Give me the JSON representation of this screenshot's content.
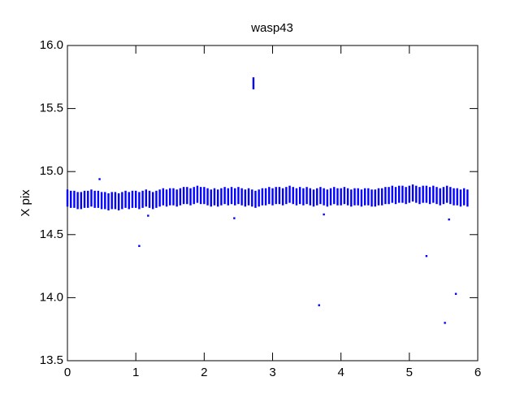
{
  "chart_data": {
    "type": "errorbar",
    "title": "wasp43",
    "y_label": "X pix",
    "xlim": [
      0,
      6
    ],
    "xticks": [
      0,
      1,
      2,
      3,
      4,
      5,
      6
    ],
    "ylim": [
      13.5,
      16.0
    ],
    "yticks": [
      {
        "value": 13.5,
        "label": "13.5"
      },
      {
        "value": 14,
        "label": "14.0"
      },
      {
        "value": 14.5,
        "label": "14.5"
      },
      {
        "value": 15,
        "label": "15.0"
      },
      {
        "value": 15.5,
        "label": "15.5"
      },
      {
        "value": 16,
        "label": "16.0"
      }
    ],
    "series": [
      {
        "color": "#0000ff",
        "error": 0.06,
        "x": [
          0,
          0.05,
          0.1,
          0.15,
          0.2,
          0.25,
          0.3,
          0.35,
          0.4,
          0.45,
          0.5,
          0.55,
          0.6,
          0.65,
          0.7,
          0.75,
          0.8,
          0.85,
          0.9,
          0.95,
          1,
          1.05,
          1.1,
          1.15,
          1.2,
          1.25,
          1.3,
          1.35,
          1.4,
          1.45,
          1.5,
          1.55,
          1.6,
          1.65,
          1.7,
          1.75,
          1.8,
          1.85,
          1.9,
          1.95,
          2,
          2.05,
          2.1,
          2.15,
          2.2,
          2.25,
          2.3,
          2.35,
          2.4,
          2.45,
          2.5,
          2.55,
          2.6,
          2.65,
          2.7,
          2.75,
          2.8,
          2.85,
          2.9,
          2.95,
          3,
          3.05,
          3.1,
          3.15,
          3.2,
          3.25,
          3.3,
          3.35,
          3.4,
          3.45,
          3.5,
          3.55,
          3.6,
          3.65,
          3.7,
          3.75,
          3.8,
          3.85,
          3.9,
          3.95,
          4,
          4.05,
          4.1,
          4.15,
          4.2,
          4.25,
          4.3,
          4.35,
          4.4,
          4.45,
          4.5,
          4.55,
          4.6,
          4.65,
          4.7,
          4.75,
          4.8,
          4.85,
          4.9,
          4.95,
          5,
          5.05,
          5.1,
          5.15,
          5.2,
          5.25,
          5.3,
          5.35,
          5.4,
          5.45,
          5.5,
          5.55,
          5.6,
          5.65,
          5.7,
          5.75,
          5.8,
          5.85
        ],
        "values": [
          14.79,
          14.78,
          14.78,
          14.77,
          14.77,
          14.78,
          14.78,
          14.79,
          14.78,
          14.78,
          14.77,
          14.77,
          14.76,
          14.77,
          14.77,
          14.76,
          14.77,
          14.78,
          14.77,
          14.78,
          14.78,
          14.77,
          14.78,
          14.79,
          14.78,
          14.77,
          14.78,
          14.79,
          14.8,
          14.79,
          14.8,
          14.8,
          14.79,
          14.8,
          14.81,
          14.81,
          14.8,
          14.81,
          14.82,
          14.81,
          14.81,
          14.8,
          14.79,
          14.8,
          14.79,
          14.8,
          14.81,
          14.8,
          14.81,
          14.8,
          14.81,
          14.8,
          14.79,
          14.8,
          14.79,
          14.78,
          14.79,
          14.8,
          14.8,
          14.81,
          14.8,
          14.81,
          14.81,
          14.8,
          14.81,
          14.82,
          14.81,
          14.8,
          14.81,
          14.8,
          14.81,
          14.8,
          14.79,
          14.8,
          14.81,
          14.8,
          14.79,
          14.8,
          14.81,
          14.8,
          14.8,
          14.81,
          14.8,
          14.79,
          14.8,
          14.8,
          14.79,
          14.8,
          14.8,
          14.79,
          14.79,
          14.8,
          14.8,
          14.81,
          14.81,
          14.82,
          14.81,
          14.82,
          14.82,
          14.81,
          14.82,
          14.83,
          14.82,
          14.81,
          14.82,
          14.82,
          14.81,
          14.82,
          14.81,
          14.8,
          14.81,
          14.82,
          14.81,
          14.8,
          14.8,
          14.79,
          14.8,
          14.79
        ]
      },
      {
        "color": "#0000ff",
        "error": 0.04,
        "x": [
          2.72
        ],
        "values": [
          15.7
        ]
      },
      {
        "color": "#0000ff",
        "error": 0,
        "x": [
          0.47,
          1.05,
          1.18,
          2.44,
          3.68,
          3.75,
          5.25,
          5.52,
          5.68,
          5.58
        ],
        "values": [
          14.94,
          14.41,
          14.65,
          14.63,
          13.94,
          14.66,
          14.33,
          13.8,
          14.03,
          14.62
        ]
      }
    ]
  }
}
